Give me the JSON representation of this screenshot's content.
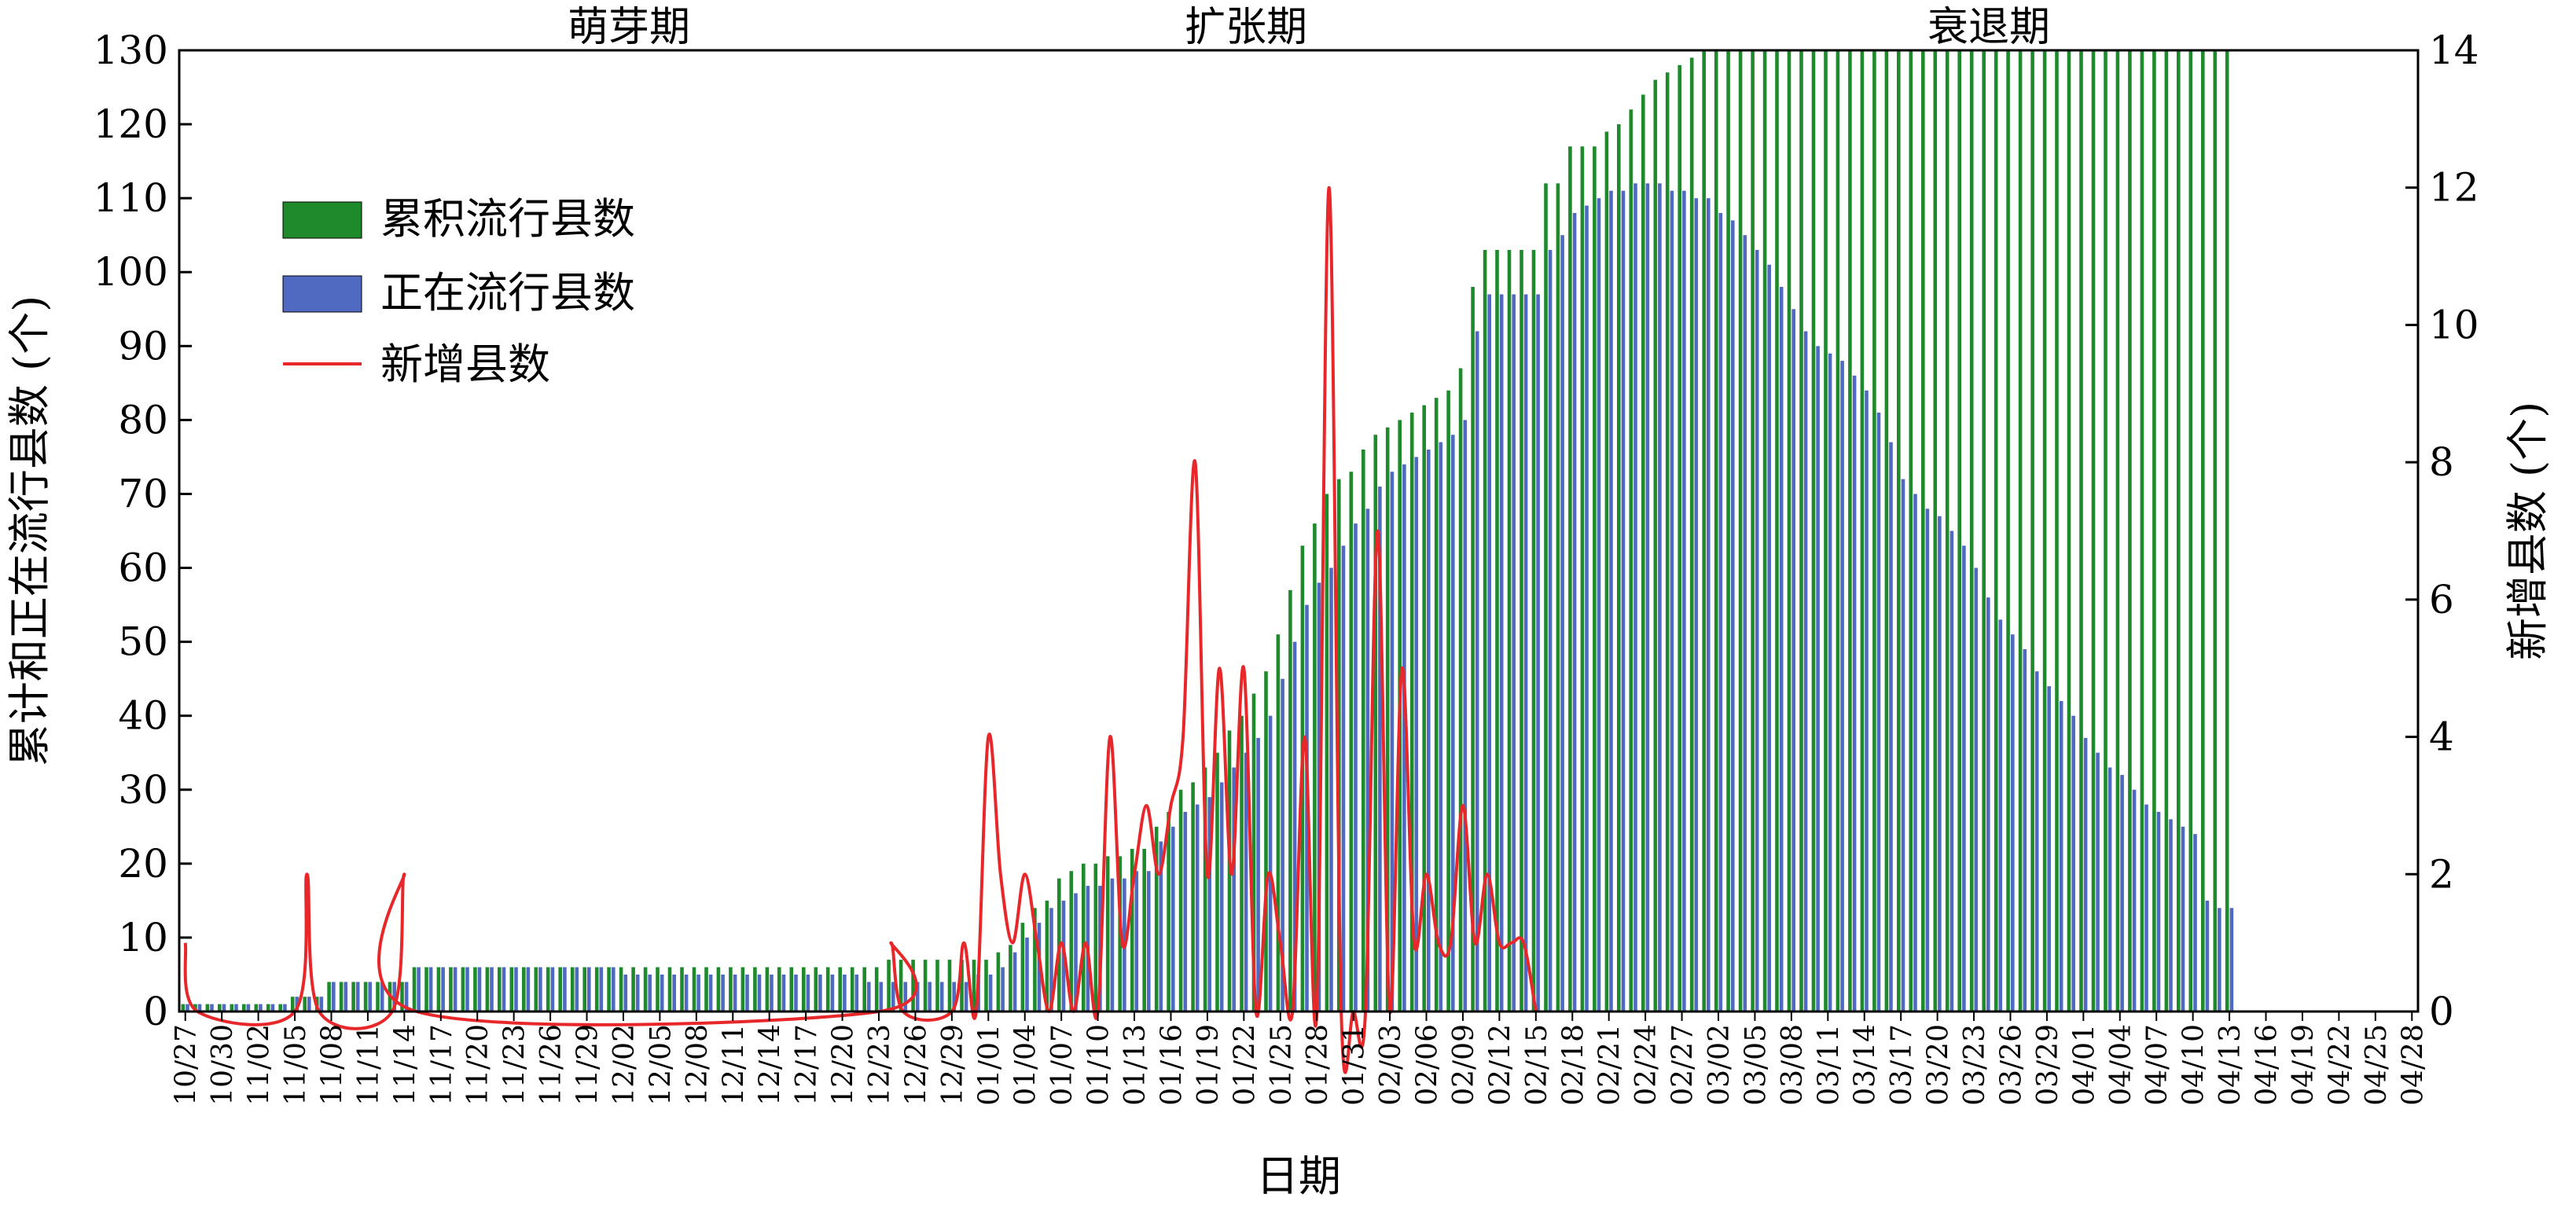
{
  "chart_data": {
    "type": "bar",
    "xlabel": "日期",
    "ylabel": "累计和正在流行县数 (个)",
    "y2label": "新增县数 (个)",
    "ylim": [
      0,
      130
    ],
    "yticks": [
      0,
      10,
      20,
      30,
      40,
      50,
      60,
      70,
      80,
      90,
      100,
      110,
      120,
      130
    ],
    "y2lim": [
      0,
      14
    ],
    "y2ticks": [
      0,
      2,
      4,
      6,
      8,
      10,
      12,
      14
    ],
    "grid": false,
    "legend_position": "upper-left",
    "phases": [
      "萌芽期",
      "扩张期",
      "衰退期"
    ],
    "colors": {
      "cumulative": "#1e8a2c",
      "active": "#4f6ac0",
      "new": "#e8272b",
      "text": "#000000"
    },
    "legend": {
      "cumulative": "累积流行县数",
      "active": "正在流行县数",
      "new": "新增县数"
    },
    "x_tick_labels": [
      "10/27",
      "10/30",
      "11/02",
      "11/05",
      "11/08",
      "11/11",
      "11/14",
      "11/17",
      "11/20",
      "11/23",
      "11/26",
      "11/29",
      "12/02",
      "12/05",
      "12/08",
      "12/11",
      "12/14",
      "12/17",
      "12/20",
      "12/23",
      "12/26",
      "12/29",
      "01/01",
      "01/04",
      "01/07",
      "01/10",
      "01/13",
      "01/16",
      "01/19",
      "01/22",
      "01/25",
      "01/28",
      "01/31",
      "02/03",
      "02/06",
      "02/09",
      "02/12",
      "02/15",
      "02/18",
      "02/21",
      "02/24",
      "02/27",
      "03/02",
      "03/05",
      "03/08",
      "03/11",
      "03/14",
      "03/17",
      "03/20",
      "03/23",
      "03/26",
      "03/29",
      "04/01",
      "04/04",
      "04/07",
      "04/10",
      "04/13",
      "04/16",
      "04/19",
      "04/22",
      "04/25",
      "04/28"
    ],
    "series": [
      {
        "name": "累积流行县数",
        "type": "bar",
        "axis": "left",
        "keyframes": [
          [
            0,
            1
          ],
          [
            8,
            1
          ],
          [
            9,
            2
          ],
          [
            11,
            2
          ],
          [
            12,
            4
          ],
          [
            18,
            4
          ],
          [
            19,
            6
          ],
          [
            57,
            6
          ],
          [
            58,
            7
          ],
          [
            66,
            7
          ],
          [
            67,
            8
          ],
          [
            68,
            9
          ],
          [
            69,
            12
          ],
          [
            70,
            14
          ],
          [
            71,
            15
          ],
          [
            72,
            18
          ],
          [
            73,
            19
          ],
          [
            75,
            20
          ],
          [
            77,
            21
          ],
          [
            79,
            22
          ],
          [
            80,
            25
          ],
          [
            81,
            27
          ],
          [
            82,
            30
          ],
          [
            83,
            31
          ],
          [
            84,
            33
          ],
          [
            85,
            35
          ],
          [
            86,
            38
          ],
          [
            87,
            40
          ],
          [
            88,
            43
          ],
          [
            89,
            46
          ],
          [
            90,
            51
          ],
          [
            91,
            57
          ],
          [
            92,
            63
          ],
          [
            93,
            66
          ],
          [
            94,
            70
          ],
          [
            95,
            72
          ],
          [
            96,
            73
          ],
          [
            97,
            76
          ],
          [
            98,
            78
          ],
          [
            99,
            79
          ],
          [
            100,
            80
          ],
          [
            101,
            81
          ],
          [
            102,
            82
          ],
          [
            103,
            83
          ],
          [
            104,
            84
          ],
          [
            105,
            87
          ],
          [
            106,
            98
          ],
          [
            107,
            103
          ],
          [
            111,
            103
          ],
          [
            112,
            112
          ],
          [
            113,
            112
          ],
          [
            114,
            117
          ],
          [
            116,
            117
          ],
          [
            117,
            119
          ],
          [
            118,
            120
          ],
          [
            119,
            122
          ],
          [
            120,
            124
          ],
          [
            121,
            126
          ],
          [
            122,
            127
          ],
          [
            123,
            128
          ],
          [
            124,
            129
          ],
          [
            125,
            130
          ],
          [
            168,
            130
          ]
        ]
      },
      {
        "name": "正在流行县数",
        "type": "bar",
        "axis": "left",
        "keyframes": [
          [
            0,
            1
          ],
          [
            8,
            1
          ],
          [
            9,
            2
          ],
          [
            11,
            2
          ],
          [
            12,
            4
          ],
          [
            18,
            4
          ],
          [
            19,
            6
          ],
          [
            35,
            6
          ],
          [
            36,
            5
          ],
          [
            55,
            5
          ],
          [
            56,
            4
          ],
          [
            64,
            4
          ],
          [
            65,
            5
          ],
          [
            66,
            5
          ],
          [
            67,
            6
          ],
          [
            68,
            8
          ],
          [
            69,
            10
          ],
          [
            70,
            12
          ],
          [
            71,
            14
          ],
          [
            72,
            15
          ],
          [
            73,
            16
          ],
          [
            75,
            17
          ],
          [
            77,
            18
          ],
          [
            79,
            19
          ],
          [
            80,
            23
          ],
          [
            81,
            25
          ],
          [
            82,
            27
          ],
          [
            83,
            28
          ],
          [
            84,
            29
          ],
          [
            85,
            31
          ],
          [
            86,
            33
          ],
          [
            87,
            35
          ],
          [
            88,
            37
          ],
          [
            89,
            40
          ],
          [
            90,
            45
          ],
          [
            91,
            50
          ],
          [
            92,
            55
          ],
          [
            93,
            58
          ],
          [
            94,
            60
          ],
          [
            95,
            63
          ],
          [
            96,
            66
          ],
          [
            97,
            68
          ],
          [
            98,
            71
          ],
          [
            99,
            73
          ],
          [
            100,
            74
          ],
          [
            101,
            75
          ],
          [
            102,
            76
          ],
          [
            103,
            77
          ],
          [
            104,
            78
          ],
          [
            105,
            80
          ],
          [
            106,
            92
          ],
          [
            107,
            97
          ],
          [
            111,
            97
          ],
          [
            112,
            103
          ],
          [
            113,
            105
          ],
          [
            114,
            108
          ],
          [
            115,
            109
          ],
          [
            116,
            110
          ],
          [
            118,
            111
          ],
          [
            119,
            112
          ],
          [
            120,
            112
          ],
          [
            121,
            112
          ],
          [
            122,
            111
          ],
          [
            123,
            111
          ],
          [
            124,
            110
          ],
          [
            125,
            110
          ],
          [
            126,
            108
          ],
          [
            127,
            107
          ],
          [
            128,
            105
          ],
          [
            129,
            103
          ],
          [
            130,
            101
          ],
          [
            131,
            98
          ],
          [
            132,
            95
          ],
          [
            133,
            92
          ],
          [
            134,
            90
          ],
          [
            135,
            89
          ],
          [
            136,
            88
          ],
          [
            137,
            86
          ],
          [
            138,
            84
          ],
          [
            139,
            81
          ],
          [
            140,
            77
          ],
          [
            141,
            72
          ],
          [
            142,
            70
          ],
          [
            143,
            68
          ],
          [
            144,
            67
          ],
          [
            145,
            65
          ],
          [
            146,
            63
          ],
          [
            147,
            60
          ],
          [
            148,
            56
          ],
          [
            149,
            53
          ],
          [
            150,
            51
          ],
          [
            151,
            49
          ],
          [
            152,
            46
          ],
          [
            153,
            44
          ],
          [
            154,
            42
          ],
          [
            155,
            40
          ],
          [
            156,
            37
          ],
          [
            157,
            35
          ],
          [
            158,
            33
          ],
          [
            159,
            32
          ],
          [
            160,
            30
          ],
          [
            161,
            28
          ],
          [
            162,
            27
          ],
          [
            163,
            26
          ],
          [
            164,
            25
          ],
          [
            165,
            24
          ],
          [
            166,
            15
          ],
          [
            167,
            14
          ],
          [
            168,
            14
          ]
        ]
      },
      {
        "name": "新增县数",
        "type": "line",
        "axis": "right",
        "points": [
          [
            0,
            1
          ],
          [
            1,
            0
          ],
          [
            9,
            0
          ],
          [
            10,
            2
          ],
          [
            11,
            0
          ],
          [
            17,
            0
          ],
          [
            18,
            2
          ],
          [
            19,
            0
          ],
          [
            57,
            0
          ],
          [
            58,
            1
          ],
          [
            59,
            0
          ],
          [
            63,
            0
          ],
          [
            64,
            1
          ],
          [
            65,
            0
          ],
          [
            66,
            4
          ],
          [
            67,
            2
          ],
          [
            68,
            1
          ],
          [
            69,
            2
          ],
          [
            70,
            1
          ],
          [
            71,
            0
          ],
          [
            72,
            1
          ],
          [
            73,
            0
          ],
          [
            74,
            1
          ],
          [
            75,
            0
          ],
          [
            76,
            4
          ],
          [
            77,
            1
          ],
          [
            78,
            2
          ],
          [
            79,
            3
          ],
          [
            80,
            2
          ],
          [
            81,
            3
          ],
          [
            82,
            4
          ],
          [
            83,
            8
          ],
          [
            84,
            2
          ],
          [
            85,
            5
          ],
          [
            86,
            2
          ],
          [
            87,
            5
          ],
          [
            88,
            0
          ],
          [
            89,
            2
          ],
          [
            90,
            1
          ],
          [
            91,
            0
          ],
          [
            92,
            4
          ],
          [
            93,
            0
          ],
          [
            94,
            12
          ],
          [
            95,
            0
          ],
          [
            96,
            0
          ],
          [
            97,
            0
          ],
          [
            98,
            7
          ],
          [
            99,
            0
          ],
          [
            100,
            5
          ],
          [
            101,
            1
          ],
          [
            102,
            2
          ],
          [
            103,
            1
          ],
          [
            104,
            1
          ],
          [
            105,
            3
          ],
          [
            106,
            1
          ],
          [
            107,
            2
          ],
          [
            108,
            1
          ],
          [
            109,
            1
          ],
          [
            110,
            1
          ],
          [
            111,
            0
          ]
        ]
      }
    ]
  }
}
